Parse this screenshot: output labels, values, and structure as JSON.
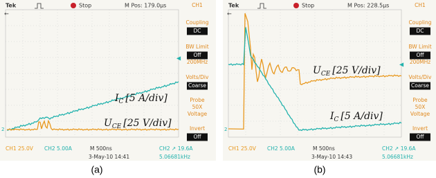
{
  "ch1_color": "#e8981e",
  "ch2_color": "#22b2ad",
  "panels": [
    {
      "header": {
        "brand": "Tek",
        "status": "Stop",
        "position": "M Pos: 179.0μs",
        "channel": "CH1"
      },
      "menu": [
        {
          "text": "Coupling",
          "highlight": false
        },
        {
          "text": "DC",
          "highlight": true
        },
        {
          "text": "BW Limit",
          "highlight": false
        },
        {
          "text": "Off",
          "highlight": true
        },
        {
          "text": "200MHz",
          "highlight": false
        },
        {
          "text": "Volts/Div",
          "highlight": false
        },
        {
          "text": "Coarse",
          "highlight": true
        },
        {
          "text": "Probe",
          "highlight": false
        },
        {
          "text": "50X",
          "highlight": false
        },
        {
          "text": "Voltage",
          "highlight": false
        },
        {
          "text": "Invert",
          "highlight": false
        },
        {
          "text": "Off",
          "highlight": true
        }
      ],
      "marker": "2",
      "labels": [
        {
          "symbol": "I",
          "subscript": "C",
          "scale": "[5 A/div]"
        },
        {
          "symbol": "U",
          "subscript": "CE",
          "scale": "[25 V/div]"
        }
      ],
      "footer": {
        "ch1": "CH1  25.0V",
        "ch2": "CH2  5.00A",
        "timebase": "M 500ns",
        "trigger": "CH2 ↗ 19.6A",
        "date": "3-May-10 14:41",
        "frequency": "5.06681kHz"
      },
      "caption": "(a)"
    },
    {
      "header": {
        "brand": "Tek",
        "status": "Stop",
        "position": "M Pos: 228.5μs",
        "channel": "CH1"
      },
      "menu": [
        {
          "text": "Coupling",
          "highlight": false
        },
        {
          "text": "DC",
          "highlight": true
        },
        {
          "text": "BW Limit",
          "highlight": false
        },
        {
          "text": "Off",
          "highlight": true
        },
        {
          "text": "200MHz",
          "highlight": false
        },
        {
          "text": "Volts/Div",
          "highlight": false
        },
        {
          "text": "Coarse",
          "highlight": true
        },
        {
          "text": "Probe",
          "highlight": false
        },
        {
          "text": "50X",
          "highlight": false
        },
        {
          "text": "Voltage",
          "highlight": false
        },
        {
          "text": "Invert",
          "highlight": false
        },
        {
          "text": "Off",
          "highlight": true
        }
      ],
      "marker": "2",
      "labels": [
        {
          "symbol": "U",
          "subscript": "CE",
          "scale": "[25 V/div]"
        },
        {
          "symbol": "I",
          "subscript": "C",
          "scale": "[5 A/div]"
        }
      ],
      "footer": {
        "ch1": "CH1  25.0V",
        "ch2": "CH2  5.00A",
        "timebase": "M 500ns",
        "trigger": "CH2 ↗ 19.6A",
        "date": "3-May-10 14:43",
        "frequency": "5.06681kHz"
      },
      "caption": "(b)"
    }
  ]
}
